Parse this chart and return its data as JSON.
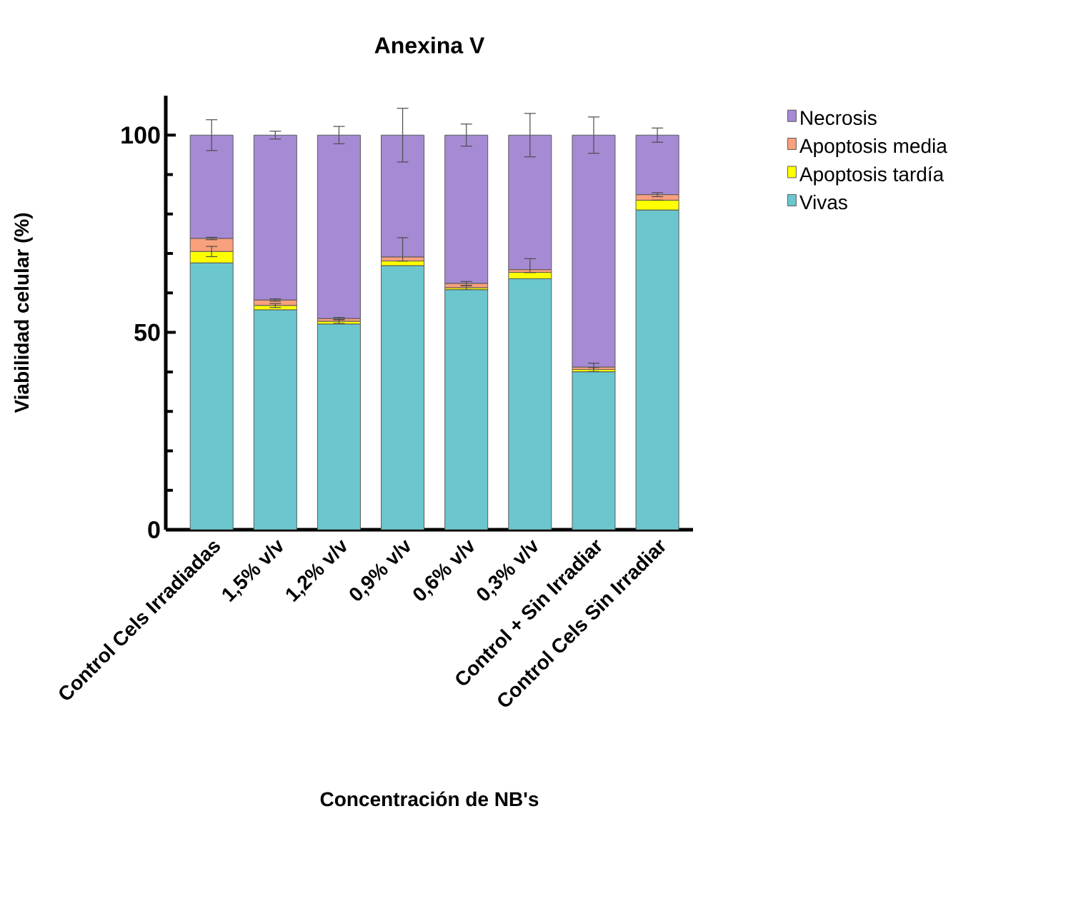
{
  "chart_data": {
    "type": "bar",
    "stacked": true,
    "title": "Anexina V",
    "xlabel": "Concentración de NB's",
    "ylabel": "Viabilidad celular (%)",
    "categories": [
      "Control Cels Irradiadas",
      "1,5% v/v",
      "1,2% v/v",
      "0,9% v/v",
      "0,6% v/v",
      "0,3% v/v",
      "Control + Sin Irradiar",
      "Control Cels Sin Irradiar"
    ],
    "series": [
      {
        "name": "Vivas",
        "color": "#6cc6ce",
        "values": [
          67.6,
          55.7,
          52.1,
          66.9,
          60.8,
          63.6,
          40.0,
          81.0
        ],
        "errors": [
          null,
          null,
          null,
          null,
          null,
          null,
          null,
          null
        ]
      },
      {
        "name": "Apoptosis tardía",
        "color": "#ffff00",
        "values": [
          2.9,
          1.1,
          0.7,
          1.2,
          0.5,
          1.6,
          0.6,
          2.5
        ],
        "errors": [
          1.3,
          0.5,
          0.5,
          null,
          0.5,
          null,
          0.5,
          null
        ]
      },
      {
        "name": "Apoptosis media",
        "color": "#f9a07d",
        "values": [
          3.3,
          1.4,
          0.7,
          1.0,
          1.1,
          0.7,
          0.6,
          1.4
        ],
        "errors": [
          0.3,
          0.3,
          0.3,
          4.9,
          0.5,
          2.8,
          1.0,
          0.5
        ]
      },
      {
        "name": "Necrosis",
        "color": "#a68ad3",
        "values": [
          26.2,
          41.8,
          46.5,
          30.9,
          37.6,
          34.1,
          58.8,
          15.1
        ],
        "errors": [
          3.9,
          1.0,
          2.2,
          6.8,
          2.8,
          5.5,
          4.6,
          1.8
        ]
      }
    ],
    "ylim": [
      0,
      110
    ],
    "yticks": [
      0,
      50,
      100
    ],
    "legend": "right",
    "grid": false
  }
}
